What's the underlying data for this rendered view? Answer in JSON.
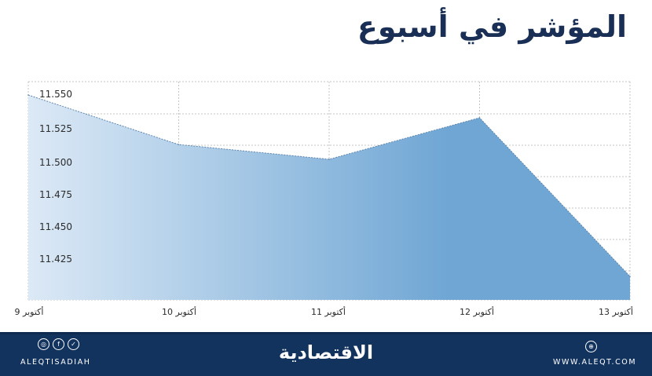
{
  "title": "المؤشر في أسبوع",
  "chart_data": {
    "type": "area",
    "x": [
      "9 أكتوبر",
      "10 أكتوبر",
      "11 أكتوبر",
      "12 أكتوبر",
      "13 أكتوبر"
    ],
    "y_ticks": [
      "11.550",
      "11.525",
      "11.500",
      "11.475",
      "11.450",
      "11.425"
    ],
    "values": [
      11.551,
      11.514,
      11.503,
      11.534,
      11.4155
    ],
    "ylim": [
      11.398,
      11.561
    ],
    "grid": true,
    "colors": {
      "fill_left": "#dce9f6",
      "fill_right": "#6fa6d4",
      "line": "#5f86ad",
      "grid": "#c4c4c4"
    }
  },
  "footer": {
    "handle": "ALEQTISADIAH",
    "logo": "الاقتصادية",
    "website": "WWW.ALEQT.COM",
    "social_icons": [
      "instagram-icon",
      "facebook-icon",
      "twitter-icon"
    ],
    "social_glyphs": [
      "◎",
      "f",
      "✓"
    ],
    "web_icon": "globe-icon",
    "web_glyph": "⊕",
    "background": "#13335f"
  }
}
